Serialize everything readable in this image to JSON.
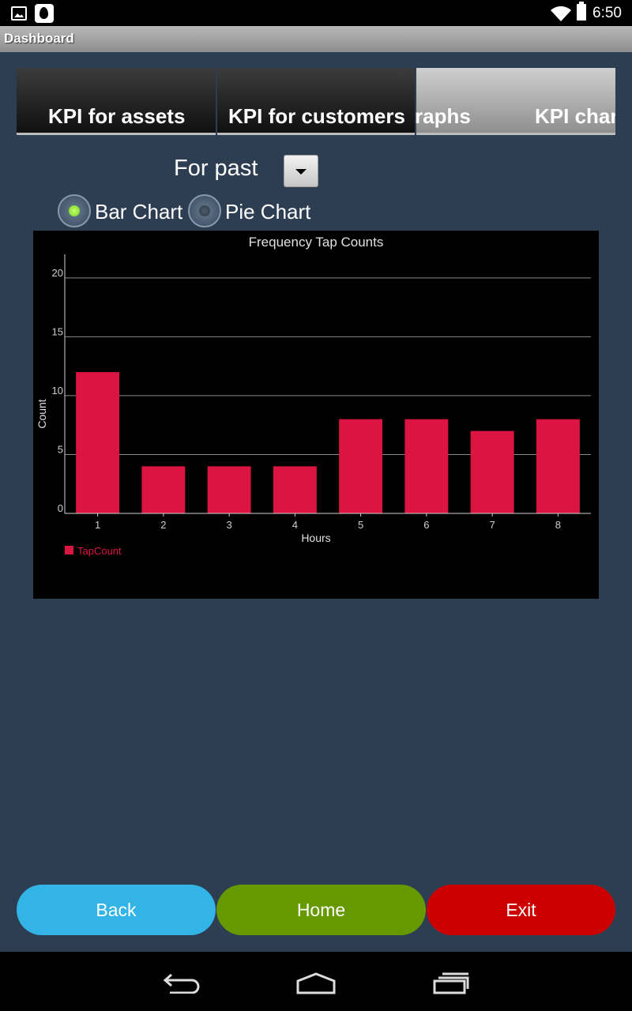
{
  "statusbar": {
    "time": "6:50",
    "icons": [
      "image-notification-icon",
      "dropbox-icon",
      "wifi-icon",
      "battery-icon"
    ]
  },
  "titlebar": {
    "title": "Dashboard"
  },
  "tabs": [
    {
      "label": "KPI for assets",
      "state": "normal"
    },
    {
      "label": "KPI for customers",
      "state": "normal"
    },
    {
      "label": "raphs",
      "state": "selected"
    },
    {
      "label": "KPI char",
      "state": "selected"
    }
  ],
  "filter": {
    "label": "For past",
    "dropdown_icon": "chevron-down-icon"
  },
  "chart_type": {
    "options": [
      {
        "label": "Bar Chart",
        "checked": true
      },
      {
        "label": "Pie Chart",
        "checked": false
      }
    ]
  },
  "chart_data": {
    "type": "bar",
    "title": "Frequency Tap Counts",
    "xlabel": "Hours",
    "ylabel": "Count",
    "categories": [
      "1",
      "2",
      "3",
      "4",
      "5",
      "6",
      "7",
      "8"
    ],
    "series": [
      {
        "name": "TapCount",
        "values": [
          12,
          4,
          4,
          4,
          8,
          8,
          7,
          8
        ],
        "color": "#dc1442"
      }
    ],
    "yticks": [
      "0",
      "5",
      "10",
      "15",
      "20"
    ],
    "ylim": [
      0,
      22
    ],
    "grid": true,
    "legend": "bottom-left"
  },
  "buttons": {
    "back": {
      "label": "Back",
      "color": "#32b4e6"
    },
    "home": {
      "label": "Home",
      "color": "#669900"
    },
    "exit": {
      "label": "Exit",
      "color": "#cc0000"
    }
  },
  "navbar": {
    "icons": [
      "back-nav-icon",
      "home-nav-icon",
      "recents-nav-icon"
    ]
  }
}
